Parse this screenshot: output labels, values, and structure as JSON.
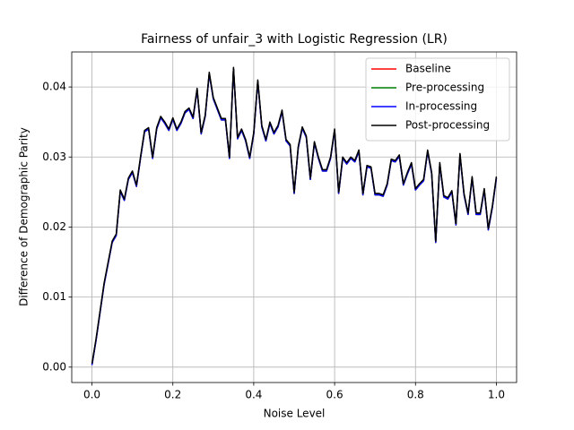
{
  "chart_data": {
    "type": "line",
    "title": "Fairness of unfair_3 with Logistic Regression (LR)",
    "xlabel": "Noise Level",
    "ylabel": "Difference of Demographic Parity",
    "x": [
      0,
      0.01,
      0.02,
      0.03,
      0.04,
      0.05,
      0.06,
      0.07,
      0.08,
      0.09,
      0.1,
      0.11,
      0.12,
      0.13,
      0.14,
      0.15,
      0.16,
      0.17,
      0.18,
      0.19,
      0.2,
      0.21,
      0.22,
      0.23,
      0.24,
      0.25,
      0.26,
      0.27,
      0.28,
      0.29,
      0.3,
      0.31,
      0.32,
      0.33,
      0.34,
      0.35,
      0.36,
      0.37,
      0.38,
      0.39,
      0.4,
      0.41,
      0.42,
      0.43,
      0.44,
      0.45,
      0.46,
      0.47,
      0.48,
      0.49,
      0.5,
      0.51,
      0.52,
      0.53,
      0.54,
      0.55,
      0.56,
      0.57,
      0.58,
      0.59,
      0.6,
      0.61,
      0.62,
      0.63,
      0.64,
      0.65,
      0.66,
      0.67,
      0.68,
      0.69,
      0.7,
      0.71,
      0.72,
      0.73,
      0.74,
      0.75,
      0.76,
      0.77,
      0.78,
      0.79,
      0.8,
      0.81,
      0.82,
      0.83,
      0.84,
      0.85,
      0.86,
      0.87,
      0.88,
      0.89,
      0.9,
      0.91,
      0.92,
      0.93,
      0.94,
      0.95,
      0.96,
      0.97,
      0.98,
      0.99,
      1
    ],
    "series": [
      {
        "name": "Baseline",
        "color": "#ff0000",
        "values": [
          0.0003,
          0.0038,
          0.0078,
          0.0118,
          0.0148,
          0.0178,
          0.0188,
          0.0251,
          0.0238,
          0.0268,
          0.0278,
          0.0258,
          0.0298,
          0.0336,
          0.034,
          0.0298,
          0.034,
          0.0356,
          0.0348,
          0.0338,
          0.0354,
          0.0338,
          0.0348,
          0.0363,
          0.0368,
          0.0355,
          0.0396,
          0.0333,
          0.0358,
          0.0419,
          0.0383,
          0.0368,
          0.0353,
          0.0353,
          0.0298,
          0.0426,
          0.0326,
          0.0338,
          0.0323,
          0.0298,
          0.0333,
          0.0408,
          0.0343,
          0.0323,
          0.0348,
          0.0333,
          0.0343,
          0.0365,
          0.0323,
          0.0316,
          0.0248,
          0.0313,
          0.0341,
          0.0328,
          0.0268,
          0.032,
          0.0298,
          0.028,
          0.028,
          0.0298,
          0.0338,
          0.0248,
          0.0298,
          0.029,
          0.0298,
          0.0293,
          0.0308,
          0.0246,
          0.0286,
          0.0284,
          0.0246,
          0.0246,
          0.0244,
          0.026,
          0.0295,
          0.0293,
          0.0301,
          0.026,
          0.0276,
          0.029,
          0.0253,
          0.026,
          0.0266,
          0.0308,
          0.0276,
          0.0178,
          0.029,
          0.0243,
          0.024,
          0.025,
          0.0203,
          0.0303,
          0.0246,
          0.0218,
          0.027,
          0.0218,
          0.0218,
          0.0253,
          0.0196,
          0.0228,
          0.027
        ]
      },
      {
        "name": "Pre-processing",
        "color": "#008000",
        "values": [
          0.0003,
          0.0038,
          0.0078,
          0.0118,
          0.0148,
          0.0178,
          0.0188,
          0.0251,
          0.0238,
          0.0268,
          0.0278,
          0.0258,
          0.0298,
          0.0336,
          0.034,
          0.0298,
          0.034,
          0.0356,
          0.0348,
          0.0338,
          0.0354,
          0.0338,
          0.0348,
          0.0363,
          0.0368,
          0.0355,
          0.0396,
          0.0333,
          0.0358,
          0.0419,
          0.0383,
          0.0368,
          0.0353,
          0.0353,
          0.0298,
          0.0426,
          0.0326,
          0.0338,
          0.0323,
          0.0298,
          0.0333,
          0.0408,
          0.0343,
          0.0323,
          0.0348,
          0.0333,
          0.0343,
          0.0365,
          0.0323,
          0.0316,
          0.0248,
          0.0313,
          0.0341,
          0.0328,
          0.0268,
          0.032,
          0.0298,
          0.028,
          0.028,
          0.0298,
          0.0338,
          0.0248,
          0.0298,
          0.029,
          0.0298,
          0.0293,
          0.0308,
          0.0246,
          0.0286,
          0.0284,
          0.0246,
          0.0246,
          0.0244,
          0.026,
          0.0295,
          0.0293,
          0.0301,
          0.026,
          0.0276,
          0.029,
          0.0253,
          0.026,
          0.0266,
          0.0308,
          0.0276,
          0.0178,
          0.029,
          0.0243,
          0.024,
          0.025,
          0.0203,
          0.0303,
          0.0246,
          0.0218,
          0.027,
          0.0218,
          0.0218,
          0.0253,
          0.0196,
          0.0228,
          0.027
        ]
      },
      {
        "name": "In-processing",
        "color": "#0000ff",
        "values": [
          0.0003,
          0.0038,
          0.0078,
          0.0118,
          0.0148,
          0.0178,
          0.0188,
          0.0251,
          0.0238,
          0.0268,
          0.0278,
          0.0258,
          0.0298,
          0.0336,
          0.034,
          0.0298,
          0.034,
          0.0356,
          0.0348,
          0.0338,
          0.0354,
          0.0338,
          0.0348,
          0.0363,
          0.0368,
          0.0355,
          0.0396,
          0.0333,
          0.0358,
          0.0419,
          0.0383,
          0.0368,
          0.0353,
          0.0353,
          0.0298,
          0.0426,
          0.0326,
          0.0338,
          0.0323,
          0.0298,
          0.0333,
          0.0408,
          0.0343,
          0.0323,
          0.0348,
          0.0333,
          0.0343,
          0.0365,
          0.0323,
          0.0316,
          0.0248,
          0.0313,
          0.0341,
          0.0328,
          0.0268,
          0.032,
          0.0298,
          0.028,
          0.028,
          0.0298,
          0.0338,
          0.0248,
          0.0298,
          0.029,
          0.0298,
          0.0293,
          0.0308,
          0.0246,
          0.0286,
          0.0284,
          0.0246,
          0.0246,
          0.0244,
          0.026,
          0.0295,
          0.0293,
          0.0301,
          0.026,
          0.0276,
          0.029,
          0.0253,
          0.026,
          0.0266,
          0.0308,
          0.0276,
          0.0178,
          0.029,
          0.0243,
          0.024,
          0.025,
          0.0203,
          0.0303,
          0.0246,
          0.0218,
          0.027,
          0.0218,
          0.0218,
          0.0253,
          0.0196,
          0.0228,
          0.027
        ]
      },
      {
        "name": "Post-processing",
        "color": "#000000",
        "values": [
          0.0005,
          0.004,
          0.008,
          0.012,
          0.015,
          0.018,
          0.019,
          0.0253,
          0.024,
          0.027,
          0.028,
          0.026,
          0.03,
          0.0338,
          0.0342,
          0.03,
          0.0342,
          0.0358,
          0.035,
          0.034,
          0.0356,
          0.034,
          0.035,
          0.0365,
          0.037,
          0.0357,
          0.0398,
          0.0335,
          0.036,
          0.0421,
          0.0385,
          0.037,
          0.0355,
          0.0355,
          0.03,
          0.0428,
          0.0328,
          0.034,
          0.0325,
          0.03,
          0.0335,
          0.041,
          0.0345,
          0.0325,
          0.035,
          0.0335,
          0.0345,
          0.0367,
          0.0325,
          0.0318,
          0.025,
          0.0315,
          0.0343,
          0.033,
          0.027,
          0.0322,
          0.03,
          0.0282,
          0.0282,
          0.03,
          0.034,
          0.025,
          0.03,
          0.0292,
          0.03,
          0.0295,
          0.031,
          0.0248,
          0.0288,
          0.0286,
          0.0248,
          0.0248,
          0.0246,
          0.0262,
          0.0297,
          0.0295,
          0.0303,
          0.0262,
          0.0278,
          0.0292,
          0.0255,
          0.0262,
          0.0268,
          0.031,
          0.0278,
          0.018,
          0.0292,
          0.0245,
          0.0242,
          0.0252,
          0.0205,
          0.0305,
          0.0248,
          0.022,
          0.0272,
          0.022,
          0.022,
          0.0255,
          0.0198,
          0.023,
          0.0272
        ]
      }
    ],
    "xlim": [
      -0.05,
      1.05
    ],
    "ylim": [
      -0.0022,
      0.045
    ],
    "xticks": [
      {
        "value": 0,
        "label": "0.0"
      },
      0.2,
      0.4,
      0.6,
      0.8,
      {
        "value": 1,
        "label": "1.0"
      }
    ],
    "yticks": [
      {
        "value": 0,
        "label": "0.00"
      },
      {
        "value": 0.01,
        "label": "0.01"
      },
      {
        "value": 0.02,
        "label": "0.02"
      },
      {
        "value": 0.03,
        "label": "0.03"
      },
      {
        "value": 0.04,
        "label": "0.04"
      }
    ],
    "grid": true,
    "legend": "upper right"
  }
}
